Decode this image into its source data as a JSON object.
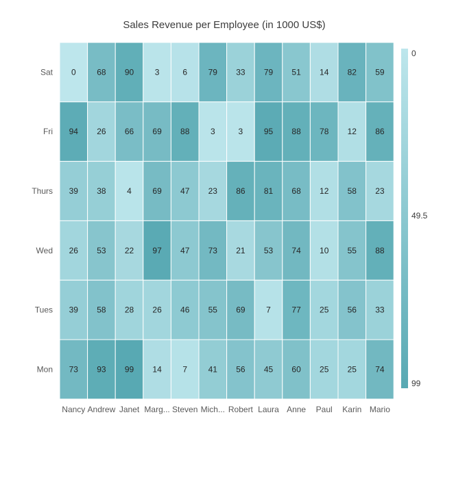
{
  "chart_data": {
    "type": "heatmap",
    "title": "Sales Revenue per Employee (in 1000 US$)",
    "x_categories": [
      "Nancy",
      "Andrew",
      "Janet",
      "Marg...",
      "Steven",
      "Mich...",
      "Robert",
      "Laura",
      "Anne",
      "Paul",
      "Karin",
      "Mario"
    ],
    "y_categories": [
      "Sat",
      "Fri",
      "Thurs",
      "Wed",
      "Tues",
      "Mon"
    ],
    "values": [
      [
        0,
        68,
        90,
        3,
        6,
        79,
        33,
        79,
        51,
        14,
        82,
        59
      ],
      [
        94,
        26,
        66,
        69,
        88,
        3,
        3,
        95,
        88,
        78,
        12,
        86
      ],
      [
        39,
        38,
        4,
        69,
        47,
        23,
        86,
        81,
        68,
        12,
        58,
        23
      ],
      [
        26,
        53,
        22,
        97,
        47,
        73,
        21,
        53,
        74,
        10,
        55,
        88
      ],
      [
        39,
        58,
        28,
        26,
        46,
        55,
        69,
        7,
        77,
        25,
        56,
        33
      ],
      [
        73,
        93,
        99,
        14,
        7,
        41,
        56,
        45,
        60,
        25,
        25,
        74
      ]
    ],
    "color_scale": {
      "min_color": "#bde6ec",
      "max_color": "#58a9b3",
      "min": 0,
      "max": 99
    },
    "legend": {
      "position": "right",
      "labels": [
        "0",
        "49.5",
        "99"
      ]
    },
    "grid": false
  }
}
